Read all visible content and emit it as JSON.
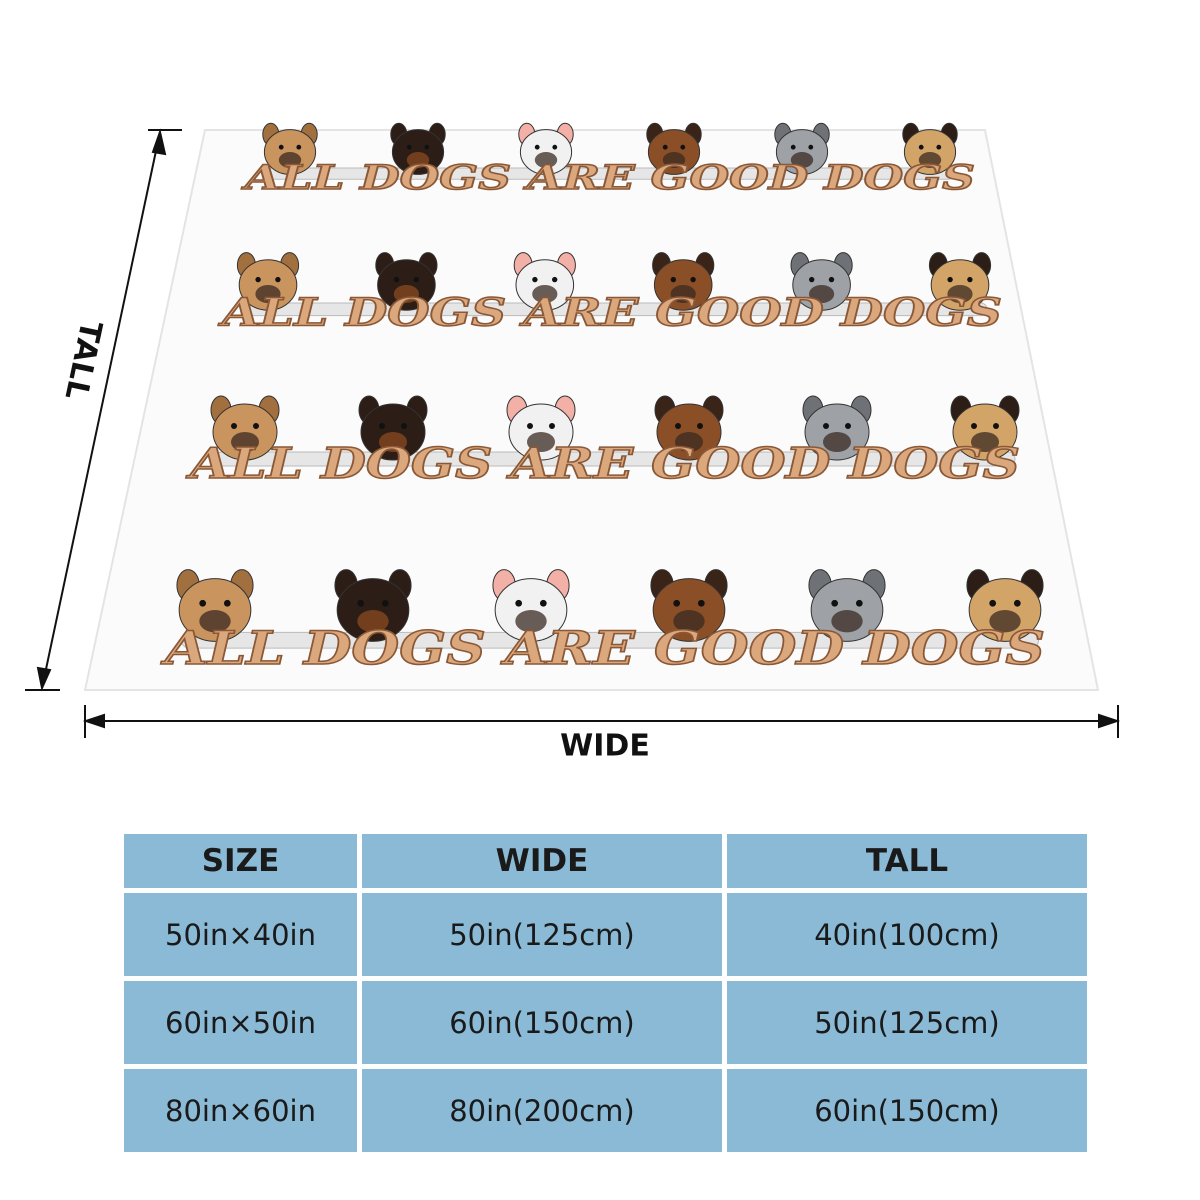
{
  "dimensions": {
    "tall": "TALL",
    "wide": "WIDE"
  },
  "blanket": {
    "rows": [
      "ALL DOGS ARE GOOD DOGS",
      "ALL DOGS ARE GOOD DOGS",
      "ALL DOGS ARE GOOD DOGS",
      "ALL DOGS ARE GOOD DOGS"
    ]
  },
  "table": {
    "header": [
      "SIZE",
      "WIDE",
      "TALL"
    ],
    "rows": [
      [
        "50in×40in",
        "50in(125cm)",
        "40in(100cm)"
      ],
      [
        "60in×50in",
        "60in(150cm)",
        "50in(125cm)"
      ],
      [
        "80in×60in",
        "80in(200cm)",
        "60in(150cm)"
      ]
    ]
  }
}
